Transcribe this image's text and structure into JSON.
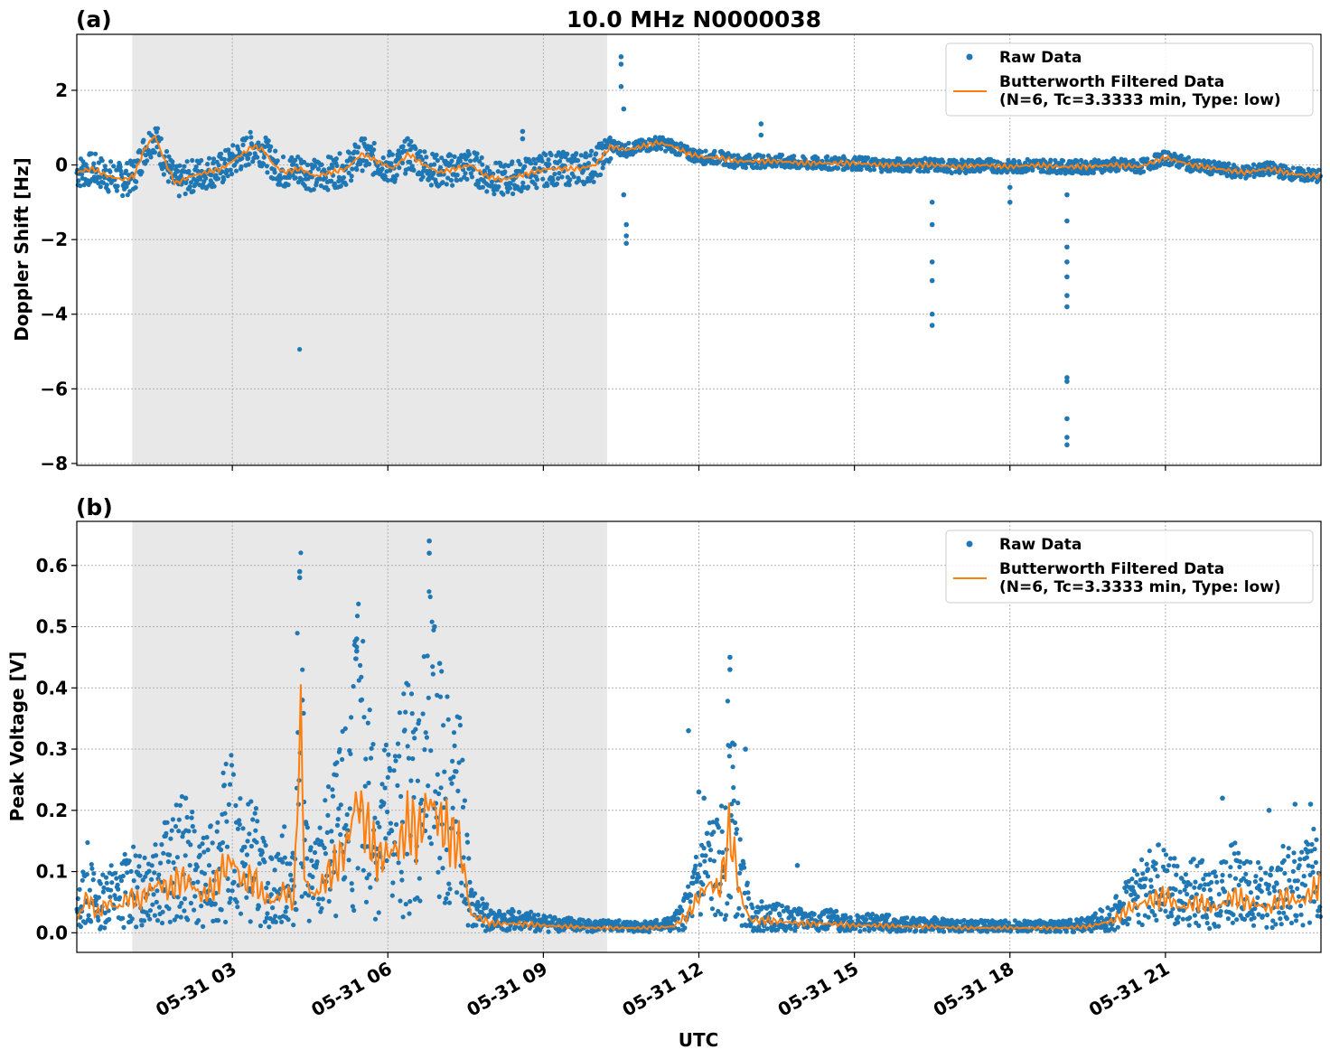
{
  "figure": {
    "title": "10.0 MHz N0000038",
    "xlabel": "UTC"
  },
  "colors": {
    "raw": "#1f77b4",
    "filtered": "#ff7f0e",
    "shade": "#e8e8e8"
  },
  "chart_data": [
    {
      "type": "scatter",
      "panel_label": "(a)",
      "title": "10.0 MHz N0000038",
      "xlabel": "",
      "ylabel": "Doppler Shift [Hz]",
      "xlim": [
        0.0,
        24.0
      ],
      "ylim": [
        -8.05,
        3.5
      ],
      "yticks": [
        2,
        0,
        -2,
        -4,
        -6,
        -8
      ],
      "ytick_labels": [
        "2",
        "0",
        "−2",
        "−4",
        "−6",
        "−8"
      ],
      "xticks": [
        3,
        6,
        9,
        12,
        15,
        18,
        21
      ],
      "shaded_range": [
        1.07,
        10.23
      ],
      "grid": true,
      "legend_position": "top-right",
      "legend": [
        "Raw Data",
        "Butterworth Filtered Data\n(N=6, Tc=3.3333 min, Type: low)"
      ],
      "series": [
        {
          "name": "Butterworth Filtered Data",
          "x": [
            0.0,
            0.3,
            0.6,
            0.9,
            1.1,
            1.3,
            1.5,
            1.7,
            1.9,
            2.2,
            2.5,
            2.8,
            3.1,
            3.4,
            3.6,
            3.8,
            4.0,
            4.3,
            4.6,
            4.9,
            5.2,
            5.5,
            5.8,
            6.1,
            6.4,
            6.7,
            7.0,
            7.3,
            7.6,
            7.9,
            8.2,
            8.5,
            8.8,
            9.1,
            9.4,
            9.7,
            10.0,
            10.3,
            10.6,
            10.9,
            11.2,
            11.5,
            11.8,
            12.1,
            12.4,
            12.7,
            13.0,
            13.5,
            14.0,
            14.5,
            15.0,
            15.5,
            16.0,
            16.5,
            17.0,
            17.5,
            18.0,
            18.5,
            19.0,
            19.5,
            20.0,
            20.5,
            21.0,
            21.5,
            22.0,
            22.5,
            23.0,
            23.5,
            24.0
          ],
          "y": [
            -0.2,
            -0.1,
            -0.3,
            -0.4,
            -0.3,
            0.4,
            0.8,
            0.1,
            -0.5,
            -0.3,
            -0.2,
            -0.1,
            0.2,
            0.5,
            0.4,
            0.0,
            -0.2,
            -0.1,
            -0.3,
            -0.2,
            -0.1,
            0.3,
            0.1,
            -0.1,
            0.3,
            0.0,
            -0.2,
            -0.1,
            0.0,
            -0.3,
            -0.4,
            -0.3,
            -0.2,
            -0.1,
            -0.1,
            -0.1,
            0.0,
            0.5,
            0.4,
            0.5,
            0.6,
            0.5,
            0.3,
            0.2,
            0.2,
            0.1,
            0.1,
            0.1,
            0.05,
            0.05,
            0.05,
            0.0,
            0.0,
            0.0,
            -0.05,
            0.0,
            -0.05,
            0.0,
            -0.05,
            -0.05,
            0.0,
            -0.05,
            0.2,
            0.0,
            -0.1,
            -0.2,
            -0.1,
            -0.25,
            -0.3
          ]
        },
        {
          "name": "Raw Data",
          "outliers_x": [
            10.5,
            10.5,
            10.5,
            10.55,
            10.55,
            10.6,
            10.6,
            10.6,
            16.5,
            16.5,
            16.5,
            16.5,
            16.5,
            16.5,
            18.0,
            18.0,
            19.1,
            19.1,
            19.1,
            19.1,
            19.1,
            19.1,
            19.1,
            19.1,
            19.1,
            19.1,
            19.1,
            19.1,
            13.2,
            13.2,
            8.6,
            8.6
          ],
          "outliers_y": [
            2.9,
            2.7,
            2.1,
            1.5,
            -0.8,
            -1.6,
            -1.9,
            -2.1,
            -1.0,
            -1.6,
            -2.6,
            -3.1,
            -4.0,
            -4.3,
            -0.6,
            -1.0,
            -0.8,
            -1.5,
            -2.2,
            -2.6,
            -3.0,
            -3.5,
            -3.8,
            -5.7,
            -5.8,
            -6.8,
            -7.3,
            -7.5,
            1.1,
            0.8,
            0.9,
            0.7
          ]
        }
      ]
    },
    {
      "type": "scatter",
      "panel_label": "(b)",
      "xlabel": "UTC",
      "ylabel": "Peak Voltage [V]",
      "xlim": [
        0.0,
        24.0
      ],
      "ylim": [
        -0.032,
        0.672
      ],
      "yticks": [
        0.0,
        0.1,
        0.2,
        0.3,
        0.4,
        0.5,
        0.6
      ],
      "ytick_labels": [
        "0.0",
        "0.1",
        "0.2",
        "0.3",
        "0.4",
        "0.5",
        "0.6"
      ],
      "xticks": [
        3,
        6,
        9,
        12,
        15,
        18,
        21
      ],
      "xtick_labels": [
        "05-31 03",
        "05-31 06",
        "05-31 09",
        "05-31 12",
        "05-31 15",
        "05-31 18",
        "05-31 21"
      ],
      "shaded_range": [
        1.07,
        10.23
      ],
      "grid": true,
      "legend_position": "top-right",
      "legend": [
        "Raw Data",
        "Butterworth Filtered Data\n(N=6, Tc=3.3333 min, Type: low)"
      ],
      "series": [
        {
          "name": "Butterworth Filtered Data",
          "x": [
            0.0,
            0.2,
            0.4,
            0.6,
            0.8,
            1.0,
            1.2,
            1.4,
            1.6,
            1.8,
            2.0,
            2.2,
            2.4,
            2.6,
            2.8,
            3.0,
            3.2,
            3.4,
            3.6,
            3.8,
            4.0,
            4.2,
            4.3,
            4.4,
            4.6,
            4.8,
            5.0,
            5.2,
            5.4,
            5.6,
            5.8,
            6.0,
            6.2,
            6.4,
            6.6,
            6.8,
            7.0,
            7.2,
            7.4,
            7.6,
            8.0,
            8.5,
            9.0,
            9.5,
            10.0,
            10.5,
            11.0,
            11.5,
            11.8,
            12.0,
            12.2,
            12.4,
            12.6,
            12.8,
            13.0,
            13.3,
            13.6,
            14.0,
            14.5,
            15.0,
            15.5,
            16.0,
            16.5,
            17.0,
            17.5,
            18.0,
            18.5,
            19.0,
            19.5,
            20.0,
            20.3,
            20.6,
            21.0,
            21.3,
            21.6,
            22.0,
            22.3,
            22.6,
            23.0,
            23.3,
            23.6,
            24.0
          ],
          "y": [
            0.02,
            0.06,
            0.03,
            0.05,
            0.04,
            0.06,
            0.05,
            0.07,
            0.08,
            0.07,
            0.09,
            0.08,
            0.06,
            0.07,
            0.1,
            0.12,
            0.08,
            0.09,
            0.06,
            0.05,
            0.07,
            0.05,
            0.38,
            0.08,
            0.06,
            0.09,
            0.11,
            0.14,
            0.22,
            0.17,
            0.12,
            0.13,
            0.14,
            0.18,
            0.16,
            0.22,
            0.18,
            0.16,
            0.14,
            0.03,
            0.015,
            0.015,
            0.012,
            0.01,
            0.008,
            0.008,
            0.008,
            0.01,
            0.03,
            0.06,
            0.08,
            0.07,
            0.17,
            0.06,
            0.02,
            0.02,
            0.018,
            0.015,
            0.015,
            0.012,
            0.012,
            0.01,
            0.01,
            0.008,
            0.008,
            0.008,
            0.008,
            0.008,
            0.01,
            0.02,
            0.04,
            0.05,
            0.06,
            0.04,
            0.05,
            0.04,
            0.06,
            0.05,
            0.04,
            0.06,
            0.05,
            0.08
          ]
        },
        {
          "name": "Raw Data",
          "outliers_x": [
            4.3,
            4.3,
            4.35,
            5.4,
            5.4,
            6.8,
            6.8,
            6.9,
            7.0,
            11.8,
            12.0,
            12.1,
            12.6,
            12.6,
            12.65,
            12.9,
            1.7,
            2.1,
            22.1,
            23.0,
            23.5,
            23.8,
            13.9
          ],
          "outliers_y": [
            0.59,
            0.58,
            0.38,
            0.48,
            0.46,
            0.64,
            0.62,
            0.5,
            0.44,
            0.33,
            0.23,
            0.22,
            0.45,
            0.43,
            0.31,
            0.3,
            0.18,
            0.22,
            0.22,
            0.2,
            0.21,
            0.21,
            0.11
          ]
        }
      ]
    }
  ]
}
